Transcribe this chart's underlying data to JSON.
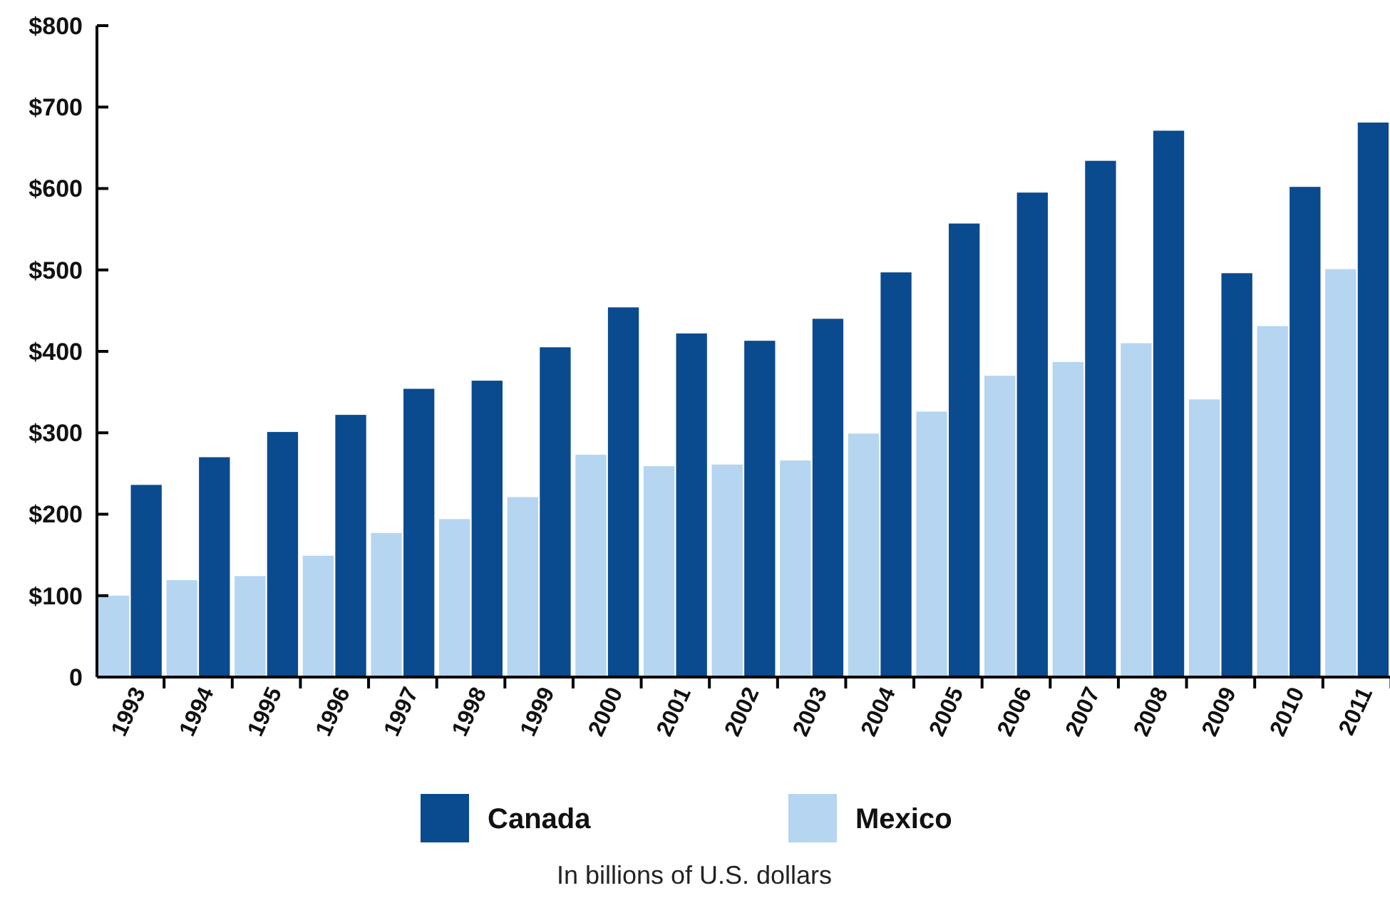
{
  "chart_data": {
    "type": "bar",
    "categories": [
      "1993",
      "1994",
      "1995",
      "1996",
      "1997",
      "1998",
      "1999",
      "2000",
      "2001",
      "2002",
      "2003",
      "2004",
      "2005",
      "2006",
      "2007",
      "2008",
      "2009",
      "2010",
      "2011"
    ],
    "series": [
      {
        "name": "Mexico",
        "color": "#b5d5f0",
        "values": [
          100,
          119,
          124,
          149,
          177,
          194,
          221,
          273,
          259,
          261,
          266,
          299,
          326,
          370,
          387,
          410,
          341,
          431,
          501
        ]
      },
      {
        "name": "Canada",
        "color": "#0a4a8f",
        "values": [
          236,
          270,
          301,
          322,
          354,
          364,
          405,
          454,
          422,
          413,
          440,
          497,
          557,
          595,
          634,
          671,
          496,
          602,
          681
        ]
      }
    ],
    "ylim": [
      0,
      800
    ],
    "yticks": [
      {
        "value": 0,
        "label": "0"
      },
      {
        "value": 100,
        "label": "$100"
      },
      {
        "value": 200,
        "label": "$200"
      },
      {
        "value": 300,
        "label": "$300"
      },
      {
        "value": 400,
        "label": "$400"
      },
      {
        "value": 500,
        "label": "$500"
      },
      {
        "value": 600,
        "label": "$600"
      },
      {
        "value": 700,
        "label": "$700"
      },
      {
        "value": 800,
        "label": "$800"
      }
    ],
    "grid": false,
    "legend": "bottom",
    "annotations": [
      "In billions of U.S. dollars"
    ]
  }
}
